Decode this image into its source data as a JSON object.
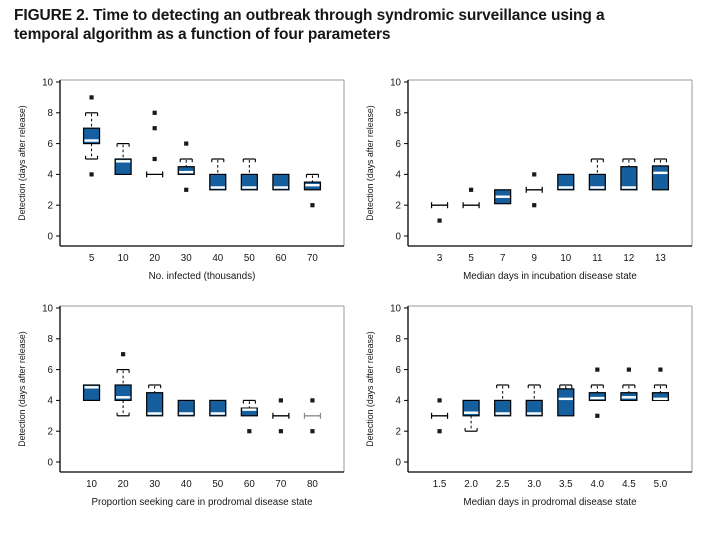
{
  "figure": {
    "title_lines": [
      "FIGURE 2. Time to detecting an outbreak through syndromic surveillance using a",
      "temporal algorithm as a function of four parameters"
    ]
  },
  "style": {
    "box_fill": "#155f9e",
    "box_stroke": "#000000",
    "median_color": "#ffffff",
    "outlier_color": "#1a1a1a",
    "frame_light": "#9a9a9a",
    "axis_color": "#000000"
  },
  "chart_data": [
    {
      "type": "box",
      "position": "top-left",
      "title": "",
      "xlabel": "No. infected (thousands)",
      "ylabel": "Detection (days after release)",
      "ylim": [
        0,
        10
      ],
      "yticks": [
        0,
        2,
        4,
        6,
        8,
        10
      ],
      "grid": false,
      "categories": [
        "5",
        "10",
        "20",
        "30",
        "40",
        "50",
        "60",
        "70"
      ],
      "boxes": [
        {
          "q1": 6,
          "q3": 7,
          "median": 6.2,
          "lo": 5,
          "hi": 8,
          "outliers": [
            9,
            4
          ]
        },
        {
          "q1": 4,
          "q3": 5,
          "median": 4.85,
          "hi": 6,
          "outliers": []
        },
        {
          "collapsed": 4,
          "outliers": [
            8,
            7,
            5
          ]
        },
        {
          "q1": 4,
          "q3": 4.5,
          "median": 4.15,
          "hi": 5,
          "outliers": [
            6,
            3
          ]
        },
        {
          "q1": 3,
          "q3": 4,
          "median": 3.15,
          "hi": 5,
          "outliers": []
        },
        {
          "q1": 3,
          "q3": 4,
          "median": 3.15,
          "hi": 5,
          "outliers": []
        },
        {
          "q1": 3,
          "q3": 4,
          "median": 3.15,
          "outliers": []
        },
        {
          "q1": 3,
          "q3": 3.5,
          "median": 3.3,
          "hi": 4,
          "outliers": [
            2
          ]
        }
      ]
    },
    {
      "type": "box",
      "position": "top-right",
      "title": "",
      "xlabel": "Median days in incubation disease state",
      "ylabel": "Detection (days after release)",
      "ylim": [
        0,
        10
      ],
      "yticks": [
        0,
        2,
        4,
        6,
        8,
        10
      ],
      "grid": false,
      "categories": [
        "3",
        "5",
        "7",
        "9",
        "10",
        "11",
        "12",
        "13"
      ],
      "boxes": [
        {
          "collapsed": 2,
          "outliers": [
            1
          ]
        },
        {
          "collapsed": 2,
          "outliers": [
            3
          ]
        },
        {
          "q1": 2.1,
          "q3": 3,
          "median": 2.55,
          "outliers": []
        },
        {
          "collapsed": 3,
          "outliers": [
            4,
            2
          ]
        },
        {
          "q1": 3,
          "q3": 4,
          "median": 3.15,
          "outliers": []
        },
        {
          "q1": 3,
          "q3": 4,
          "median": 3.15,
          "hi": 5,
          "outliers": []
        },
        {
          "q1": 3,
          "q3": 4.5,
          "median": 3.15,
          "hi": 5,
          "outliers": []
        },
        {
          "q1": 3,
          "q3": 4.55,
          "median": 4.1,
          "hi": 5,
          "outliers": []
        }
      ]
    },
    {
      "type": "box",
      "position": "bottom-left",
      "title": "",
      "xlabel": "Proportion seeking care in prodromal disease state",
      "ylabel": "Detection (days after release)",
      "ylim": [
        0,
        10
      ],
      "yticks": [
        0,
        2,
        4,
        6,
        8,
        10
      ],
      "grid": false,
      "categories": [
        "10",
        "20",
        "30",
        "40",
        "50",
        "60",
        "70",
        "80"
      ],
      "boxes": [
        {
          "q1": 4,
          "q3": 5,
          "median": 4.85,
          "outliers": []
        },
        {
          "q1": 4,
          "q3": 5,
          "median": 4.2,
          "lo": 3,
          "hi": 6,
          "outliers": [
            7
          ]
        },
        {
          "q1": 3,
          "q3": 4.5,
          "median": 3.15,
          "hi": 5,
          "outliers": []
        },
        {
          "q1": 3,
          "q3": 4,
          "median": 3.15,
          "outliers": []
        },
        {
          "q1": 3,
          "q3": 4,
          "median": 3.15,
          "outliers": []
        },
        {
          "q1": 3,
          "q3": 3.5,
          "median": 3.4,
          "hi": 4,
          "outliers": [
            2
          ]
        },
        {
          "collapsed": 3,
          "outliers": [
            4,
            2
          ]
        },
        {
          "collapsed": 3,
          "color": "#8c8c8c",
          "outliers": [
            4,
            2
          ]
        }
      ]
    },
    {
      "type": "box",
      "position": "bottom-right",
      "title": "",
      "xlabel": "Median days in prodromal disease state",
      "ylabel": "Detection (days after release)",
      "ylim": [
        0,
        10
      ],
      "yticks": [
        0,
        2,
        4,
        6,
        8,
        10
      ],
      "grid": false,
      "categories": [
        "1.5",
        "2.0",
        "2.5",
        "3.0",
        "3.5",
        "4.0",
        "4.5",
        "5.0"
      ],
      "boxes": [
        {
          "collapsed": 3,
          "outliers": [
            4,
            2
          ]
        },
        {
          "q1": 3,
          "q3": 4,
          "median": 3.2,
          "lo": 2,
          "outliers": []
        },
        {
          "q1": 3,
          "q3": 4,
          "median": 3.15,
          "hi": 5,
          "outliers": []
        },
        {
          "q1": 3,
          "q3": 4,
          "median": 3.15,
          "hi": 5,
          "outliers": []
        },
        {
          "q1": 3,
          "q3": 4.75,
          "median": 4.1,
          "hi": 5,
          "outliers": []
        },
        {
          "q1": 4,
          "q3": 4.5,
          "median": 4.15,
          "hi": 5,
          "outliers": [
            6,
            3
          ]
        },
        {
          "q1": 4,
          "q3": 4.5,
          "median": 4.2,
          "hi": 5,
          "outliers": [
            6
          ]
        },
        {
          "q1": 4,
          "q3": 4.5,
          "median": 4.1,
          "hi": 5,
          "outliers": [
            6
          ]
        }
      ]
    }
  ]
}
